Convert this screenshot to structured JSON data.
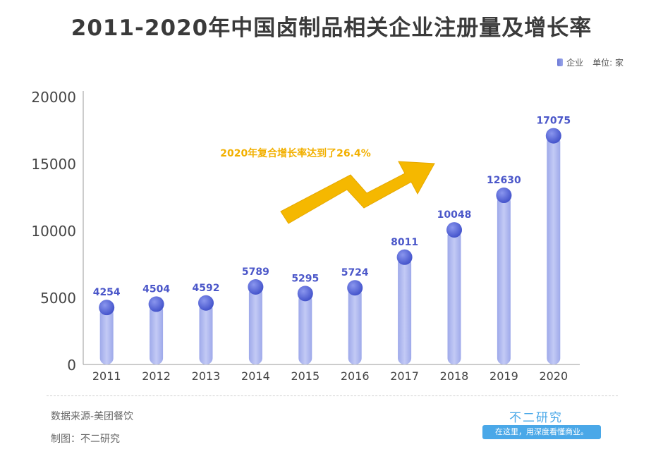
{
  "title": "2011-2020年中国卤制品相关企业注册量及增长率",
  "legend": {
    "series_label": "企业",
    "unit": "单位: 家"
  },
  "annotation": "2020年复合增长率达到了26.4%",
  "footer": {
    "source": "数据来源-美团餐饮",
    "maker": "制图：不二研究",
    "brand": "不二研究",
    "slogan": "在这里，用深度看懂商业。"
  },
  "colors": {
    "bar": "#b0b9ef",
    "dot": "#5565d6",
    "label": "#4b57c9",
    "arrow": "#f5b800",
    "brand": "#4aa8e8"
  },
  "chart_data": {
    "type": "bar",
    "categories": [
      "2011",
      "2012",
      "2013",
      "2014",
      "2015",
      "2016",
      "2017",
      "2018",
      "2019",
      "2020"
    ],
    "series": [
      {
        "name": "企业",
        "values": [
          4254,
          4504,
          4592,
          5789,
          5295,
          5724,
          8011,
          10048,
          12630,
          17075
        ]
      }
    ],
    "ylim": [
      0,
      20000
    ],
    "yticks": [
      "0",
      "5000",
      "10000",
      "15000",
      "20000"
    ],
    "data_labels": [
      "4254",
      "4504",
      "4592",
      "5789",
      "5295",
      "5724",
      "8011",
      "10048",
      "12630",
      "17075"
    ],
    "grid": false
  }
}
